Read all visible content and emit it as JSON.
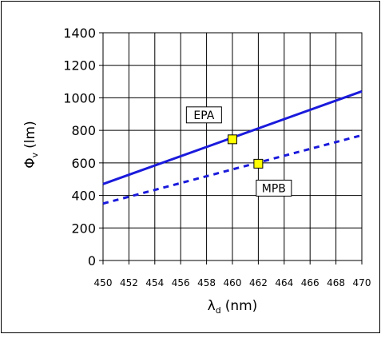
{
  "chart_data": {
    "type": "line",
    "xlabel": "λd (nm)",
    "xlabel_base": "λ",
    "xlabel_sub": "d",
    "xlabel_unit": "(nm)",
    "ylabel": "Φv (lm)",
    "ylabel_base": "Φ",
    "ylabel_sub": "v",
    "ylabel_unit": "(lm)",
    "xlim": [
      450,
      470
    ],
    "ylim": [
      0,
      1400
    ],
    "x_ticks": [
      450,
      452,
      454,
      456,
      458,
      460,
      462,
      464,
      466,
      468,
      470
    ],
    "y_ticks": [
      0,
      200,
      400,
      600,
      800,
      1000,
      1200,
      1400
    ],
    "grid": true,
    "series": [
      {
        "name": "EPA",
        "style": "solid",
        "color": "#1a1adc",
        "x": [
          450,
          470
        ],
        "y": [
          470,
          1040
        ]
      },
      {
        "name": "MPB",
        "style": "dashed",
        "color": "#1a1adc",
        "x": [
          450,
          470
        ],
        "y": [
          350,
          770
        ]
      }
    ],
    "points": [
      {
        "label": "EPA",
        "x": 460,
        "y": 745,
        "color": "#ffff00"
      },
      {
        "label": "MPB",
        "x": 462,
        "y": 595,
        "color": "#ffff00"
      }
    ],
    "labels": [
      {
        "text": "EPA",
        "x": 457.8,
        "y": 895
      },
      {
        "text": "MPB",
        "x": 463.2,
        "y": 445
      }
    ]
  }
}
